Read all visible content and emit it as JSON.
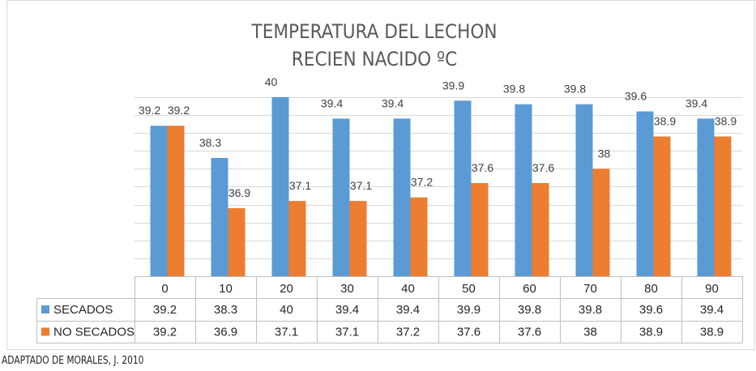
{
  "source_note": "ADAPTADO DE MORALES, J. 2010",
  "chart_data": {
    "type": "bar",
    "title_lines": [
      "TEMPERATURA DEL LECHON",
      "RECIEN NACIDO ºC"
    ],
    "categories": [
      "0",
      "10",
      "20",
      "30",
      "40",
      "50",
      "60",
      "70",
      "80",
      "90"
    ],
    "series": [
      {
        "name": "SECADOS",
        "color": "#5b9bd5",
        "values": [
          39.2,
          38.3,
          40,
          39.4,
          39.4,
          39.9,
          39.8,
          39.8,
          39.6,
          39.4
        ]
      },
      {
        "name": "NO SECADOS",
        "color": "#ed7d31",
        "values": [
          39.2,
          36.9,
          37.1,
          37.1,
          37.2,
          37.6,
          37.6,
          38,
          38.9,
          38.9
        ]
      }
    ],
    "ylim": [
      35,
      40.2
    ],
    "grid": true,
    "data_labels": true,
    "data_table": true,
    "legend": "data-table"
  }
}
